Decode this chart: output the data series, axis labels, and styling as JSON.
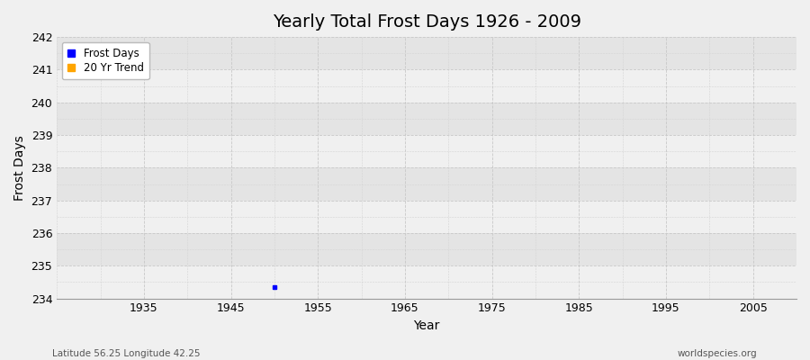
{
  "title": "Yearly Total Frost Days 1926 - 2009",
  "xlabel": "Year",
  "ylabel": "Frost Days",
  "subtitle_left": "Latitude 56.25 Longitude 42.25",
  "subtitle_right": "worldspecies.org",
  "xlim": [
    1925,
    2010
  ],
  "ylim": [
    234,
    242
  ],
  "yticks": [
    234,
    235,
    236,
    237,
    238,
    239,
    240,
    241,
    242
  ],
  "xticks": [
    1935,
    1945,
    1955,
    1965,
    1975,
    1985,
    1995,
    2005
  ],
  "data_points": [
    [
      1950,
      234.35
    ]
  ],
  "legend_items": [
    {
      "label": "Frost Days",
      "color": "#0000ff"
    },
    {
      "label": "20 Yr Trend",
      "color": "#ffa500"
    }
  ],
  "bg_color": "#f0f0f0",
  "plot_area_color": "#e8e8e8",
  "band_color_light": "#f0f0f0",
  "band_color_dark": "#e4e4e4",
  "grid_major_color": "#c8c8c8",
  "grid_minor_color": "#d4d4d4",
  "point_color": "#0000ff",
  "point_size": 3,
  "title_fontsize": 14,
  "label_fontsize": 10,
  "tick_fontsize": 9
}
